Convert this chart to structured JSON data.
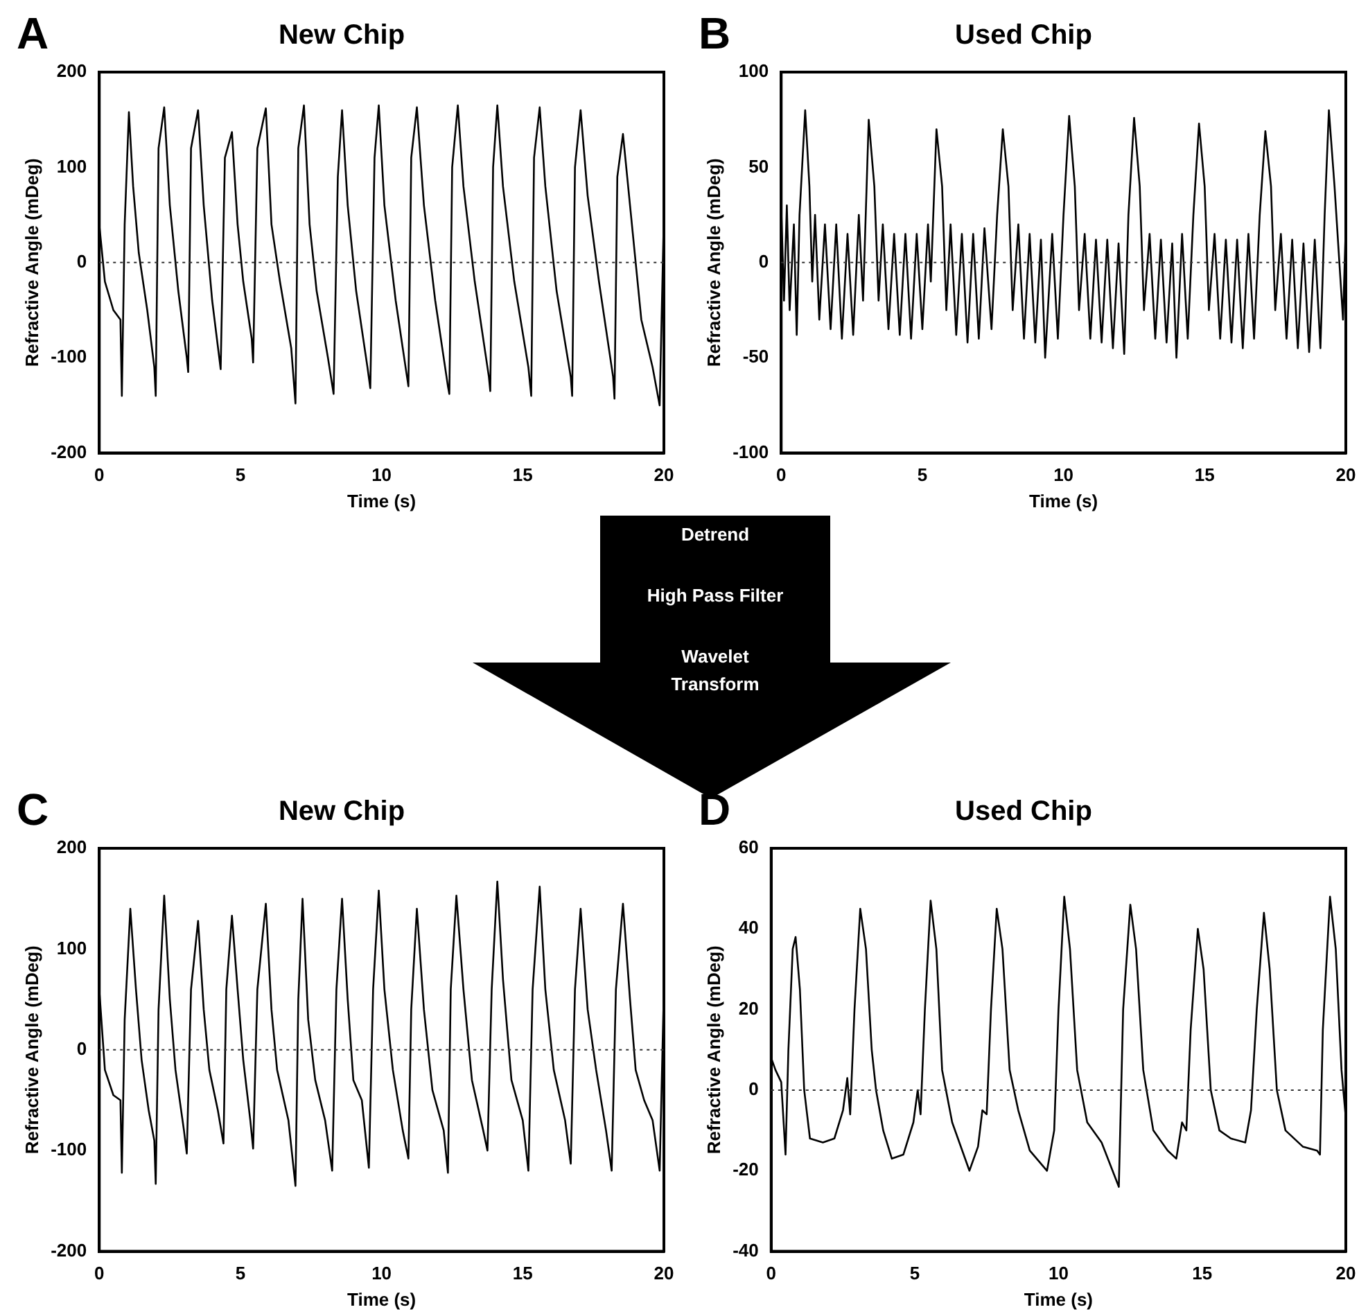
{
  "chart_data": [
    {
      "type": "line",
      "title": "New Chip",
      "xlabel": "Time (s)",
      "ylabel": "Refractive Angle (mDeg)",
      "annotations": [
        "A"
      ],
      "xlim": [
        0,
        20
      ],
      "xticks": [
        0,
        5,
        10,
        15,
        20
      ],
      "ylim": [
        -200,
        200
      ],
      "yticks": [
        -200,
        -100,
        0,
        100,
        200
      ],
      "ref_lines": [
        {
          "axis": "y",
          "value": 0,
          "line_style": "dotted"
        }
      ],
      "series": [
        {
          "color": "#000000",
          "x": [
            0,
            0.2,
            0.5,
            0.75,
            0.8,
            0.9,
            1.05,
            1.2,
            1.4,
            1.7,
            1.95,
            2.0,
            2.1,
            2.3,
            2.5,
            2.8,
            3.1,
            3.15,
            3.25,
            3.5,
            3.7,
            4.0,
            4.25,
            4.3,
            4.45,
            4.7,
            4.9,
            5.1,
            5.4,
            5.45,
            5.6,
            5.9,
            6.1,
            6.4,
            6.8,
            6.95,
            7.05,
            7.25,
            7.45,
            7.7,
            8.1,
            8.3,
            8.45,
            8.6,
            8.8,
            9.1,
            9.5,
            9.6,
            9.75,
            9.9,
            10.1,
            10.5,
            10.9,
            10.95,
            11.05,
            11.25,
            11.5,
            11.9,
            12.35,
            12.4,
            12.5,
            12.7,
            12.9,
            13.3,
            13.8,
            13.85,
            13.95,
            14.1,
            14.3,
            14.7,
            15.2,
            15.3,
            15.4,
            15.6,
            15.8,
            16.2,
            16.7,
            16.75,
            16.85,
            17.05,
            17.3,
            17.7,
            18.2,
            18.25,
            18.35,
            18.55,
            18.8,
            19.0,
            19.2,
            19.6,
            19.85,
            20
          ],
          "values": [
            40,
            -20,
            -50,
            -60,
            -140,
            40,
            158,
            80,
            10,
            -50,
            -110,
            -140,
            120,
            163,
            60,
            -30,
            -100,
            -115,
            120,
            160,
            60,
            -40,
            -100,
            -112,
            110,
            137,
            40,
            -20,
            -80,
            -105,
            120,
            162,
            40,
            -20,
            -90,
            -148,
            120,
            165,
            40,
            -30,
            -100,
            -138,
            90,
            160,
            60,
            -30,
            -110,
            -132,
            110,
            165,
            60,
            -40,
            -120,
            -130,
            110,
            163,
            60,
            -40,
            -130,
            -138,
            100,
            165,
            80,
            -20,
            -120,
            -135,
            100,
            165,
            80,
            -20,
            -110,
            -140,
            110,
            163,
            80,
            -30,
            -120,
            -140,
            100,
            160,
            70,
            -20,
            -120,
            -143,
            90,
            135,
            60,
            0,
            -60,
            -110,
            -150,
            50
          ]
        }
      ]
    },
    {
      "type": "line",
      "title": "Used Chip",
      "xlabel": "Time (s)",
      "ylabel": "Refractive Angle (mDeg)",
      "annotations": [
        "B"
      ],
      "xlim": [
        0,
        20
      ],
      "xticks": [
        0,
        5,
        10,
        15,
        20
      ],
      "ylim": [
        -100,
        100
      ],
      "yticks": [
        -100,
        -50,
        0,
        50,
        100
      ],
      "ref_lines": [
        {
          "axis": "y",
          "value": 0,
          "line_style": "dotted"
        }
      ],
      "series": [
        {
          "color": "#000000",
          "x": [
            0,
            0.1,
            0.2,
            0.3,
            0.45,
            0.55,
            0.65,
            0.85,
            1.0,
            1.1,
            1.2,
            1.35,
            1.55,
            1.75,
            1.95,
            2.15,
            2.35,
            2.55,
            2.75,
            2.9,
            3.1,
            3.3,
            3.45,
            3.6,
            3.8,
            4.0,
            4.2,
            4.4,
            4.6,
            4.8,
            5.0,
            5.2,
            5.3,
            5.5,
            5.7,
            5.85,
            6.0,
            6.2,
            6.4,
            6.6,
            6.8,
            7.0,
            7.2,
            7.45,
            7.65,
            7.85,
            8.05,
            8.2,
            8.4,
            8.6,
            8.8,
            9.0,
            9.2,
            9.35,
            9.6,
            9.8,
            10.0,
            10.2,
            10.4,
            10.55,
            10.75,
            10.95,
            11.15,
            11.35,
            11.55,
            11.75,
            11.95,
            12.15,
            12.3,
            12.5,
            12.7,
            12.85,
            13.05,
            13.25,
            13.45,
            13.65,
            13.85,
            14.0,
            14.2,
            14.4,
            14.6,
            14.8,
            15.0,
            15.15,
            15.35,
            15.55,
            15.75,
            15.95,
            16.15,
            16.35,
            16.55,
            16.75,
            16.95,
            17.15,
            17.35,
            17.5,
            17.7,
            17.9,
            18.1,
            18.3,
            18.5,
            18.7,
            18.9,
            19.1,
            19.25,
            19.4,
            19.6,
            19.75,
            19.9,
            20
          ],
          "values": [
            30,
            -20,
            30,
            -25,
            20,
            -38,
            25,
            80,
            40,
            -10,
            25,
            -30,
            20,
            -35,
            20,
            -40,
            15,
            -38,
            25,
            -20,
            75,
            40,
            -20,
            20,
            -35,
            15,
            -38,
            15,
            -40,
            15,
            -35,
            20,
            -10,
            70,
            40,
            -25,
            20,
            -38,
            15,
            -42,
            15,
            -40,
            18,
            -35,
            25,
            70,
            40,
            -25,
            20,
            -40,
            15,
            -42,
            12,
            -50,
            15,
            -40,
            25,
            77,
            40,
            -25,
            15,
            -40,
            12,
            -42,
            12,
            -45,
            10,
            -48,
            25,
            76,
            40,
            -25,
            15,
            -40,
            12,
            -42,
            10,
            -50,
            15,
            -40,
            25,
            73,
            40,
            -25,
            15,
            -40,
            12,
            -42,
            12,
            -45,
            15,
            -40,
            25,
            69,
            40,
            -25,
            15,
            -40,
            12,
            -45,
            10,
            -47,
            12,
            -45,
            25,
            80,
            40,
            5,
            -30,
            20
          ]
        }
      ]
    },
    {
      "type": "line",
      "title": "New Chip",
      "xlabel": "Time (s)",
      "ylabel": "Refractive Angle (mDeg)",
      "annotations": [
        "C"
      ],
      "xlim": [
        0,
        20
      ],
      "xticks": [
        0,
        5,
        10,
        15,
        20
      ],
      "ylim": [
        -200,
        200
      ],
      "yticks": [
        -200,
        -100,
        0,
        100,
        200
      ],
      "ref_lines": [
        {
          "axis": "y",
          "value": 0,
          "line_style": "dotted"
        }
      ],
      "series": [
        {
          "color": "#000000",
          "x": [
            0,
            0.2,
            0.5,
            0.75,
            0.8,
            0.9,
            1.1,
            1.3,
            1.5,
            1.75,
            1.95,
            2.0,
            2.1,
            2.3,
            2.5,
            2.7,
            3.0,
            3.1,
            3.25,
            3.5,
            3.7,
            3.9,
            4.2,
            4.4,
            4.5,
            4.7,
            4.9,
            5.1,
            5.35,
            5.45,
            5.6,
            5.9,
            6.1,
            6.3,
            6.7,
            6.95,
            7.05,
            7.2,
            7.4,
            7.65,
            8.0,
            8.25,
            8.4,
            8.6,
            8.8,
            9.0,
            9.3,
            9.55,
            9.7,
            9.9,
            10.1,
            10.4,
            10.75,
            10.95,
            11.05,
            11.25,
            11.5,
            11.8,
            12.2,
            12.35,
            12.45,
            12.65,
            12.9,
            13.2,
            13.6,
            13.75,
            13.9,
            14.1,
            14.3,
            14.6,
            15.0,
            15.2,
            15.35,
            15.6,
            15.8,
            16.1,
            16.5,
            16.7,
            16.85,
            17.05,
            17.3,
            17.6,
            17.95,
            18.15,
            18.3,
            18.55,
            18.8,
            19.0,
            19.3,
            19.6,
            19.85,
            20
          ],
          "values": [
            60,
            -20,
            -45,
            -50,
            -122,
            30,
            140,
            60,
            -10,
            -60,
            -90,
            -133,
            40,
            153,
            50,
            -20,
            -80,
            -103,
            60,
            128,
            40,
            -20,
            -60,
            -93,
            60,
            133,
            60,
            -10,
            -70,
            -98,
            60,
            145,
            40,
            -20,
            -70,
            -135,
            50,
            150,
            30,
            -30,
            -70,
            -120,
            60,
            150,
            50,
            -30,
            -50,
            -117,
            60,
            158,
            60,
            -20,
            -80,
            -108,
            40,
            140,
            40,
            -40,
            -80,
            -122,
            60,
            153,
            60,
            -30,
            -80,
            -100,
            60,
            167,
            70,
            -30,
            -70,
            -120,
            60,
            162,
            60,
            -20,
            -70,
            -113,
            60,
            140,
            40,
            -20,
            -80,
            -120,
            60,
            145,
            50,
            -20,
            -50,
            -70,
            -120,
            60
          ]
        }
      ]
    },
    {
      "type": "line",
      "title": "Used Chip",
      "xlabel": "Time (s)",
      "ylabel": "Refractive Angle (mDeg)",
      "annotations": [
        "D"
      ],
      "xlim": [
        0,
        20
      ],
      "xticks": [
        0,
        5,
        10,
        15,
        20
      ],
      "ylim": [
        -40,
        60
      ],
      "yticks": [
        -40,
        -20,
        0,
        20,
        40,
        60
      ],
      "ref_lines": [
        {
          "axis": "y",
          "value": 0,
          "line_style": "dotted"
        }
      ],
      "series": [
        {
          "color": "#000000",
          "x": [
            0,
            0.15,
            0.35,
            0.5,
            0.6,
            0.75,
            0.85,
            1.0,
            1.15,
            1.35,
            1.8,
            2.2,
            2.5,
            2.65,
            2.75,
            2.9,
            3.1,
            3.3,
            3.5,
            3.65,
            3.9,
            4.2,
            4.6,
            4.95,
            5.1,
            5.2,
            5.35,
            5.55,
            5.75,
            5.95,
            6.3,
            6.9,
            7.2,
            7.35,
            7.5,
            7.65,
            7.85,
            8.05,
            8.3,
            8.6,
            9.0,
            9.6,
            9.85,
            10.0,
            10.2,
            10.4,
            10.65,
            11.0,
            11.5,
            12.1,
            12.25,
            12.5,
            12.7,
            12.95,
            13.3,
            13.8,
            14.1,
            14.3,
            14.45,
            14.6,
            14.85,
            15.05,
            15.3,
            15.6,
            16.0,
            16.5,
            16.7,
            16.9,
            17.15,
            17.35,
            17.6,
            17.9,
            18.5,
            19.0,
            19.1,
            19.2,
            19.45,
            19.65,
            19.85,
            20
          ],
          "values": [
            8,
            5,
            2,
            -16,
            10,
            35,
            38,
            25,
            0,
            -12,
            -13,
            -12,
            -5,
            3,
            -6,
            20,
            45,
            35,
            10,
            0,
            -10,
            -17,
            -16,
            -8,
            0,
            -6,
            20,
            47,
            35,
            5,
            -8,
            -20,
            -14,
            -5,
            -6,
            20,
            45,
            35,
            5,
            -5,
            -15,
            -20,
            -10,
            20,
            48,
            35,
            5,
            -8,
            -13,
            -24,
            20,
            46,
            35,
            5,
            -10,
            -15,
            -17,
            -8,
            -10,
            15,
            40,
            30,
            0,
            -10,
            -12,
            -13,
            -5,
            20,
            44,
            30,
            0,
            -10,
            -14,
            -15,
            -16,
            15,
            48,
            35,
            5,
            -7
          ]
        }
      ]
    },
    {
      "type": "other",
      "annotations": [
        "Detrend",
        "High Pass Filter",
        "Wavelet Transform"
      ]
    }
  ]
}
